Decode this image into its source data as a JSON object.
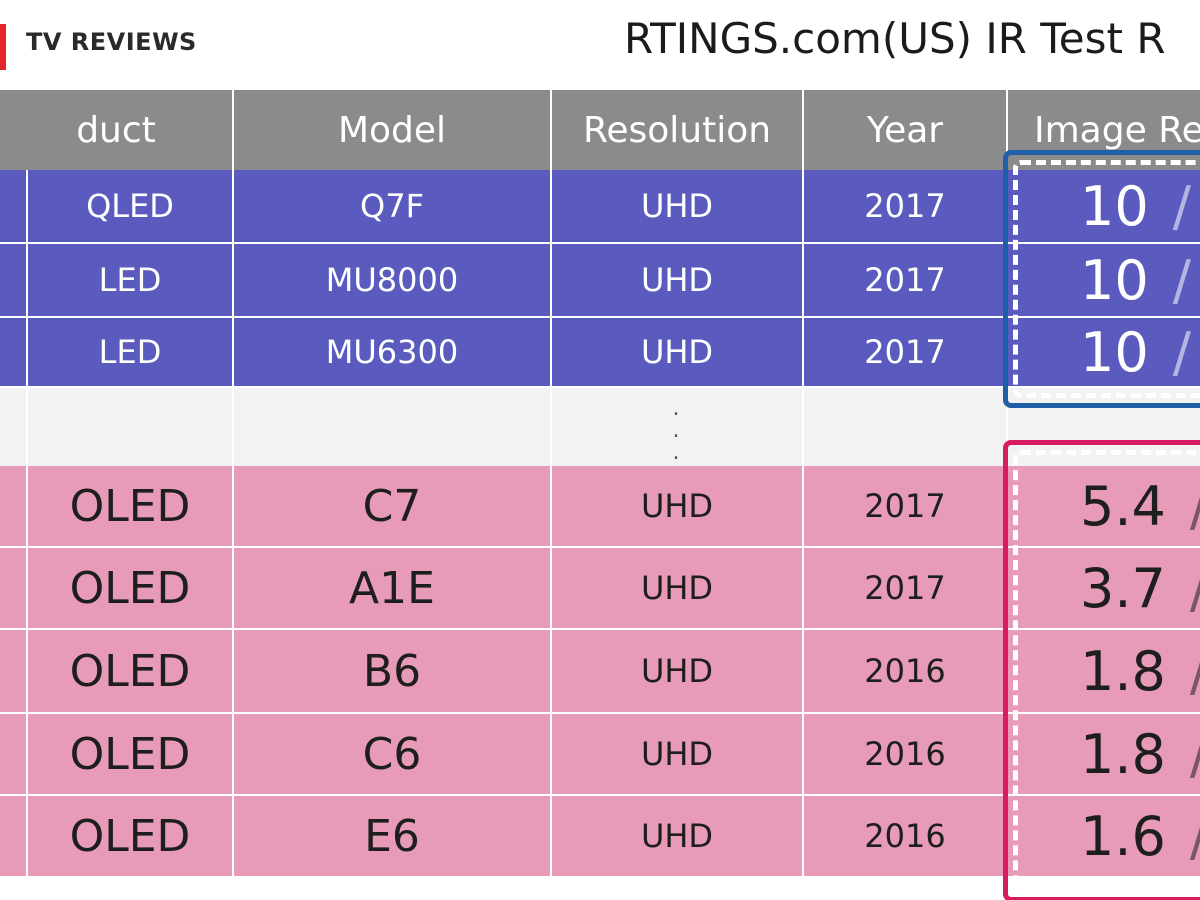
{
  "header": {
    "logo_text": "TV REVIEWS",
    "title": "RTINGS.com(US) IR Test R"
  },
  "table": {
    "columns": [
      "duct",
      "Model",
      "Resolution",
      "Year",
      "Image Re"
    ],
    "ellipsis": ". . .",
    "rows": [
      {
        "type": "QLED",
        "model": "Q7F",
        "resolution": "UHD",
        "year": "2017",
        "score": "10",
        "score_suffix": "/"
      },
      {
        "type": "LED",
        "model": "MU8000",
        "resolution": "UHD",
        "year": "2017",
        "score": "10",
        "score_suffix": "/"
      },
      {
        "type": "LED",
        "model": "MU6300",
        "resolution": "UHD",
        "year": "2017",
        "score": "10",
        "score_suffix": "/"
      },
      {
        "type": "OLED",
        "model": "C7",
        "resolution": "UHD",
        "year": "2017",
        "score": "5.4",
        "score_suffix": "/"
      },
      {
        "type": "OLED",
        "model": "A1E",
        "resolution": "UHD",
        "year": "2017",
        "score": "3.7",
        "score_suffix": "/"
      },
      {
        "type": "OLED",
        "model": "B6",
        "resolution": "UHD",
        "year": "2016",
        "score": "1.8",
        "score_suffix": "/"
      },
      {
        "type": "OLED",
        "model": "C6",
        "resolution": "UHD",
        "year": "2016",
        "score": "1.8",
        "score_suffix": "/"
      },
      {
        "type": "OLED",
        "model": "E6",
        "resolution": "UHD",
        "year": "2016",
        "score": "1.6",
        "score_suffix": "/"
      }
    ]
  },
  "colors": {
    "header_bg": "#8b8b8b",
    "samsung_rows": "#5b5bbf",
    "oled_rows": "#e79bb8",
    "highlight_blue": "#1f5fa8",
    "highlight_pink": "#d81b60",
    "logo_accent": "#e2262b"
  }
}
